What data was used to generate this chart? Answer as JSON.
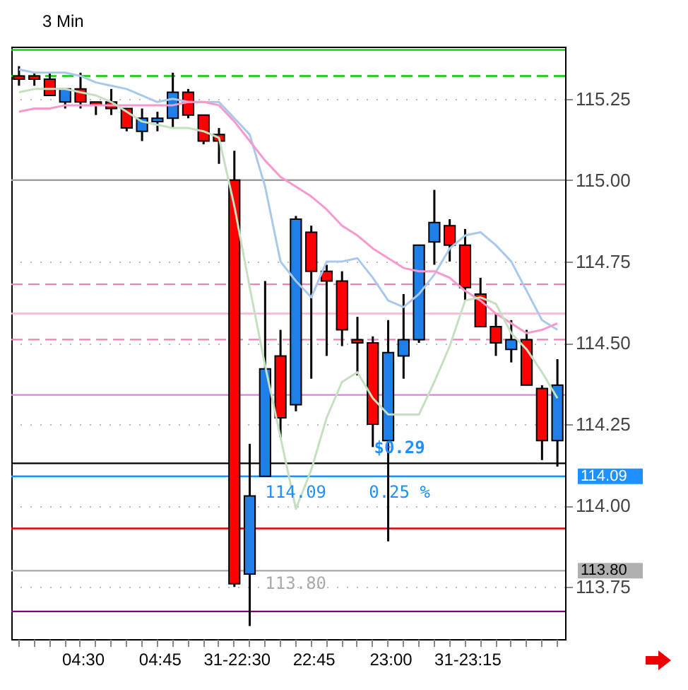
{
  "chart_data": {
    "type": "candlestick",
    "title": "3 Min",
    "categories": [
      null,
      null,
      null,
      null,
      "04:30",
      null,
      null,
      null,
      null,
      "04:45",
      null,
      null,
      null,
      null,
      "31-22:30",
      null,
      null,
      null,
      null,
      "22:45",
      null,
      null,
      null,
      null,
      "23:00",
      null,
      null,
      null,
      null,
      "31-23:15",
      null,
      null,
      null,
      null,
      null,
      null
    ],
    "ohlc": [
      [
        115.32,
        115.35,
        115.29,
        115.31
      ],
      [
        115.32,
        115.33,
        115.29,
        115.31
      ],
      [
        115.31,
        115.33,
        115.26,
        115.26
      ],
      [
        115.24,
        115.28,
        115.22,
        115.28
      ],
      [
        115.28,
        115.33,
        115.22,
        115.24
      ],
      [
        115.24,
        115.24,
        115.2,
        115.23
      ],
      [
        115.24,
        115.28,
        115.2,
        115.22
      ],
      [
        115.22,
        115.22,
        115.15,
        115.16
      ],
      [
        115.15,
        115.22,
        115.12,
        115.19
      ],
      [
        115.18,
        115.21,
        115.15,
        115.19
      ],
      [
        115.19,
        115.33,
        115.16,
        115.27
      ],
      [
        115.27,
        115.28,
        115.19,
        115.2
      ],
      [
        115.2,
        115.2,
        115.11,
        115.12
      ],
      [
        115.14,
        115.16,
        115.05,
        115.12
      ],
      [
        115.0,
        115.09,
        113.75,
        113.76
      ],
      [
        113.79,
        114.19,
        113.63,
        114.03
      ],
      [
        114.09,
        114.69,
        114.09,
        114.42
      ],
      [
        114.46,
        114.54,
        114.21,
        114.27
      ],
      [
        114.31,
        114.89,
        114.29,
        114.88
      ],
      [
        114.84,
        114.86,
        114.39,
        114.72
      ],
      [
        114.72,
        114.74,
        114.46,
        114.69
      ],
      [
        114.69,
        114.72,
        114.49,
        114.54
      ],
      [
        114.51,
        114.58,
        114.4,
        114.5
      ],
      [
        114.5,
        114.52,
        114.18,
        114.25
      ],
      [
        114.2,
        114.57,
        113.89,
        114.47
      ],
      [
        114.46,
        114.65,
        114.39,
        114.51
      ],
      [
        114.51,
        114.8,
        114.5,
        114.8
      ],
      [
        114.81,
        114.97,
        114.74,
        114.87
      ],
      [
        114.86,
        114.88,
        114.75,
        114.8
      ],
      [
        114.8,
        114.85,
        114.63,
        114.67
      ],
      [
        114.65,
        114.7,
        114.55,
        114.55
      ],
      [
        114.55,
        114.59,
        114.46,
        114.5
      ],
      [
        114.48,
        114.57,
        114.44,
        114.51
      ],
      [
        114.51,
        114.54,
        114.37,
        114.37
      ],
      [
        114.36,
        114.37,
        114.14,
        114.2
      ],
      [
        114.2,
        114.45,
        114.12,
        114.37
      ]
    ],
    "colors": [
      "#ff0000",
      "#ff0000",
      "#ff0000",
      "#1e7fe8",
      "#ff0000",
      "#ff0000",
      "#ff0000",
      "#ff0000",
      "#1e7fe8",
      "#1e7fe8",
      "#1e7fe8",
      "#ff0000",
      "#ff0000",
      "#ff0000",
      "#ff0000",
      "#1e7fe8",
      "#1e7fe8",
      "#ff0000",
      "#1e7fe8",
      "#ff0000",
      "#ff0000",
      "#ff0000",
      "#ff0000",
      "#ff0000",
      "#1e7fe8",
      "#1e7fe8",
      "#1e7fe8",
      "#1e7fe8",
      "#ff0000",
      "#ff0000",
      "#ff0000",
      "#ff0000",
      "#1e7fe8",
      "#ff0000",
      "#ff0000",
      "#1e7fe8"
    ],
    "series": [
      {
        "type": "line",
        "color": "#a9c9ec",
        "values": [
          115.34,
          115.33,
          115.33,
          115.33,
          115.32,
          115.3,
          115.29,
          115.28,
          115.26,
          115.24,
          115.25,
          115.24,
          115.24,
          115.24,
          115.19,
          115.14,
          114.98,
          114.75,
          114.69,
          114.64,
          114.75,
          114.75,
          114.76,
          114.7,
          114.63,
          114.61,
          114.65,
          114.71,
          114.79,
          114.83,
          114.84,
          114.8,
          114.75,
          114.66,
          114.57,
          114.54
        ]
      },
      {
        "type": "line",
        "color": "#f79acb",
        "values": [
          115.21,
          115.22,
          115.22,
          115.23,
          115.23,
          115.23,
          115.23,
          115.23,
          115.23,
          115.23,
          115.23,
          115.24,
          115.24,
          115.23,
          115.18,
          115.12,
          115.06,
          115.01,
          114.98,
          114.95,
          114.91,
          114.86,
          114.83,
          114.79,
          114.76,
          114.73,
          114.72,
          114.72,
          114.7,
          114.66,
          114.63,
          114.59,
          114.56,
          114.53,
          114.54,
          114.56
        ]
      },
      {
        "type": "line",
        "color": "#c5e0c0",
        "values": [
          115.27,
          115.28,
          115.28,
          115.28,
          115.27,
          115.26,
          115.24,
          115.21,
          115.18,
          115.17,
          115.16,
          115.16,
          115.15,
          115.13,
          114.92,
          114.67,
          114.43,
          114.21,
          113.99,
          114.11,
          114.27,
          114.38,
          114.41,
          114.33,
          114.28,
          114.28,
          114.28,
          114.38,
          114.49,
          114.63,
          114.64,
          114.62,
          114.53,
          114.48,
          114.41,
          114.33
        ]
      }
    ],
    "ylim": [
      113.59,
      115.41
    ],
    "yticks": [
      {
        "value": 113.75,
        "label": "113.75"
      },
      {
        "value": 114,
        "label": "114.00"
      },
      {
        "value": 114.25,
        "label": "114.25"
      },
      {
        "value": 114.5,
        "label": "114.50"
      },
      {
        "value": 114.75,
        "label": "114.75"
      },
      {
        "value": 115,
        "label": "115.00"
      },
      {
        "value": 115.25,
        "label": "115.25"
      }
    ],
    "grid": "y",
    "ref_lines": [
      {
        "axis": "y",
        "value": 115.4,
        "color": "#00cc00",
        "line_style": "solid"
      },
      {
        "axis": "y",
        "value": 115.32,
        "color": "#00cc00",
        "line_style": "dashed"
      },
      {
        "axis": "y",
        "value": 115.0,
        "color": "#a0a0a0",
        "line_style": "solid"
      },
      {
        "axis": "y",
        "value": 114.68,
        "color": "#f27fb8",
        "line_style": "dashed"
      },
      {
        "axis": "y",
        "value": 114.59,
        "color": "#f7b6d6",
        "line_style": "solid"
      },
      {
        "axis": "y",
        "value": 114.51,
        "color": "#f27fb8",
        "line_style": "dashed"
      },
      {
        "axis": "y",
        "value": 114.34,
        "color": "#e07ee0",
        "line_style": "solid"
      },
      {
        "axis": "y",
        "value": 114.13,
        "color": "#000000",
        "line_style": "solid"
      },
      {
        "axis": "y",
        "value": 114.09,
        "color": "#1e90ff",
        "line_style": "solid",
        "label": "114.09"
      },
      {
        "axis": "y",
        "value": 113.93,
        "color": "#dd0000",
        "line_style": "solid"
      },
      {
        "axis": "y",
        "value": 113.8,
        "color": "#b0b0b0",
        "line_style": "solid",
        "label": "113.80"
      },
      {
        "axis": "y",
        "value": 113.675,
        "color": "#800080",
        "line_style": "solid"
      }
    ],
    "annotations": [
      {
        "text": "$0.29",
        "y": 114.14
      },
      {
        "text": "0.25 %",
        "y": 114.08
      },
      {
        "text": "114.09",
        "y": 114.08
      },
      {
        "text": "113.80",
        "y": 113.8
      }
    ]
  }
}
